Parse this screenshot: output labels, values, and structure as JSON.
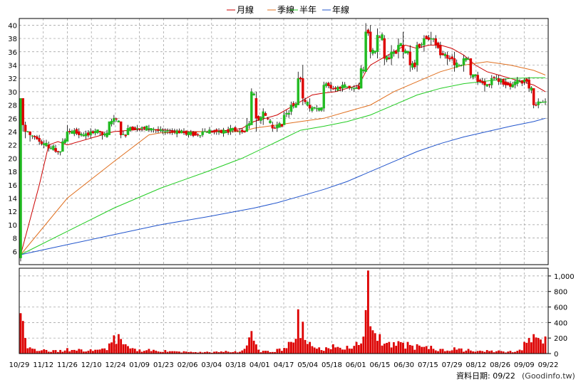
{
  "legend": [
    {
      "label": "月線",
      "color": "#cc0000"
    },
    {
      "label": "季線",
      "color": "#e07020"
    },
    {
      "label": "半年",
      "color": "#22cc22"
    },
    {
      "label": "年線",
      "color": "#2255cc"
    }
  ],
  "footer": {
    "date_label": "資料日期: 09/22",
    "source": "(Goodinfo.tw)"
  },
  "chart_data": [
    {
      "type": "candlestick",
      "title": "",
      "x_tick_labels": [
        "10/29",
        "11/12",
        "11/26",
        "12/10",
        "12/24",
        "01/09",
        "01/23",
        "02/06",
        "03/04",
        "03/18",
        "04/01",
        "04/17",
        "05/04",
        "05/18",
        "06/01",
        "06/15",
        "06/30",
        "07/15",
        "07/29",
        "08/12",
        "08/26",
        "09/09",
        "09/22"
      ],
      "y_ticks": [
        6,
        8,
        10,
        12,
        14,
        16,
        18,
        20,
        22,
        24,
        26,
        28,
        30,
        32,
        34,
        36,
        38,
        40
      ],
      "ylim": [
        4,
        41
      ],
      "grid": true,
      "legend_position": "top-center",
      "up_color": "#22bb22",
      "down_color": "#dd0000",
      "ohlc_keypoints": [
        [
          0,
          5,
          29,
          4.5,
          29
        ],
        [
          1,
          29,
          29,
          24,
          25
        ],
        [
          2,
          25,
          25.5,
          23,
          24
        ],
        [
          4,
          24,
          24,
          22.5,
          23.5
        ],
        [
          8,
          23,
          23.5,
          22,
          22.5
        ],
        [
          12,
          22,
          22.5,
          21,
          21.5
        ],
        [
          15,
          21.5,
          22,
          20.8,
          21
        ],
        [
          18,
          21,
          23,
          21,
          22.5
        ],
        [
          20,
          22.5,
          25,
          22.5,
          24
        ],
        [
          25,
          24,
          24.5,
          23,
          23.5
        ],
        [
          30,
          23.5,
          24.5,
          23,
          24
        ],
        [
          35,
          24,
          24,
          22.8,
          23.5
        ],
        [
          38,
          23.5,
          25.5,
          23.5,
          25.5
        ],
        [
          40,
          25.5,
          26.5,
          25,
          26
        ],
        [
          43,
          25.5,
          25.5,
          23,
          23.5
        ],
        [
          46,
          23.5,
          25,
          23.5,
          24.5
        ],
        [
          50,
          24.5,
          25,
          24,
          24.5
        ],
        [
          55,
          24.5,
          25,
          24,
          24.5
        ],
        [
          62,
          24,
          24.5,
          23.5,
          24
        ],
        [
          70,
          24,
          24.5,
          23.5,
          23.8
        ],
        [
          78,
          23.5,
          24.5,
          23.2,
          24
        ],
        [
          85,
          24,
          24.5,
          23.5,
          24
        ],
        [
          90,
          24,
          25,
          23.5,
          24.5
        ],
        [
          94,
          24,
          24.5,
          23.5,
          24
        ],
        [
          97,
          24,
          26,
          24,
          25
        ],
        [
          99,
          25,
          30.5,
          25,
          30
        ],
        [
          101,
          29,
          30,
          24,
          26
        ],
        [
          104,
          26,
          27.5,
          25,
          27
        ],
        [
          108,
          25,
          25.5,
          24,
          24.5
        ],
        [
          110,
          24.5,
          25.5,
          24,
          25
        ],
        [
          113,
          25,
          27,
          25,
          26.5
        ],
        [
          116,
          27,
          28.5,
          26.5,
          28
        ],
        [
          119,
          28,
          33,
          28,
          32
        ],
        [
          121,
          32,
          34,
          28,
          29
        ],
        [
          124,
          28,
          29,
          27,
          27.5
        ],
        [
          127,
          27.5,
          28,
          27,
          27.5
        ],
        [
          130,
          27.5,
          31.5,
          27,
          31
        ],
        [
          133,
          31,
          31.5,
          30,
          30.5
        ],
        [
          138,
          30.5,
          31.5,
          30,
          31
        ],
        [
          143,
          30.5,
          31,
          30,
          30.5
        ],
        [
          146,
          30.5,
          34,
          30.5,
          33.5
        ],
        [
          148,
          33,
          40.3,
          33,
          39
        ],
        [
          150,
          39,
          40,
          35,
          36
        ],
        [
          153,
          36,
          39.5,
          35,
          38.5
        ],
        [
          156,
          38,
          38.5,
          34,
          35
        ],
        [
          159,
          35,
          37,
          34,
          36
        ],
        [
          162,
          36,
          38,
          35,
          37
        ],
        [
          164,
          37,
          39,
          35,
          36
        ],
        [
          167,
          36,
          37,
          33,
          34
        ],
        [
          170,
          34,
          37.5,
          33,
          37
        ],
        [
          173,
          37,
          38.5,
          36,
          38
        ],
        [
          176,
          38,
          39,
          37,
          38
        ],
        [
          178,
          38,
          38.5,
          36.5,
          37
        ],
        [
          180,
          37,
          37.5,
          35,
          35.5
        ],
        [
          183,
          35.5,
          36,
          34,
          35
        ],
        [
          186,
          35,
          36,
          33,
          34
        ],
        [
          190,
          34,
          35.5,
          33,
          35
        ],
        [
          193,
          35,
          35,
          32,
          32.5
        ],
        [
          196,
          32.5,
          33,
          31,
          31.5
        ],
        [
          199,
          31.5,
          32,
          30,
          31
        ],
        [
          202,
          31,
          32.5,
          30.5,
          32
        ],
        [
          205,
          32,
          32.5,
          31,
          31.5
        ],
        [
          208,
          31.5,
          32,
          30.5,
          31
        ],
        [
          212,
          31,
          31.8,
          30.5,
          31.5
        ],
        [
          216,
          31.5,
          32,
          31,
          31.8
        ],
        [
          218,
          31.8,
          32.2,
          30,
          30.5
        ],
        [
          220,
          30.5,
          30.5,
          27.5,
          28
        ],
        [
          222,
          28,
          29,
          27.5,
          28.5
        ],
        [
          225,
          28.5,
          29,
          28,
          28.5
        ]
      ],
      "ma_series": [
        {
          "name": "月線",
          "color": "#cc0000",
          "points": [
            [
              0,
              5.5
            ],
            [
              8,
              16
            ],
            [
              12,
              22
            ],
            [
              16,
              22.5
            ],
            [
              20,
              22
            ],
            [
              30,
              23
            ],
            [
              40,
              24
            ],
            [
              50,
              24.3
            ],
            [
              60,
              24.3
            ],
            [
              70,
              24
            ],
            [
              80,
              24
            ],
            [
              90,
              24.2
            ],
            [
              95,
              24.5
            ],
            [
              100,
              25.5
            ],
            [
              105,
              26
            ],
            [
              110,
              26.5
            ],
            [
              115,
              27.5
            ],
            [
              120,
              28.5
            ],
            [
              125,
              29.5
            ],
            [
              130,
              29.8
            ],
            [
              135,
              30
            ],
            [
              140,
              30.5
            ],
            [
              145,
              31
            ],
            [
              148,
              33
            ],
            [
              150,
              34
            ],
            [
              155,
              35
            ],
            [
              160,
              36
            ],
            [
              165,
              37
            ],
            [
              170,
              36.5
            ],
            [
              175,
              37
            ],
            [
              180,
              37
            ],
            [
              185,
              36.5
            ],
            [
              190,
              35.5
            ],
            [
              195,
              34
            ],
            [
              200,
              33
            ],
            [
              205,
              32.5
            ],
            [
              210,
              32
            ],
            [
              215,
              31.5
            ],
            [
              220,
              31
            ],
            [
              225,
              30
            ]
          ]
        },
        {
          "name": "季線",
          "color": "#e07020",
          "points": [
            [
              0,
              5.5
            ],
            [
              20,
              14
            ],
            [
              40,
              19.5
            ],
            [
              55,
              23.5
            ],
            [
              60,
              23.8
            ],
            [
              80,
              24
            ],
            [
              95,
              24
            ],
            [
              100,
              24.5
            ],
            [
              110,
              25
            ],
            [
              120,
              25.5
            ],
            [
              130,
              26
            ],
            [
              140,
              27
            ],
            [
              150,
              28
            ],
            [
              160,
              30
            ],
            [
              170,
              31.5
            ],
            [
              180,
              33
            ],
            [
              190,
              34
            ],
            [
              200,
              34.5
            ],
            [
              210,
              34
            ],
            [
              220,
              33.2
            ],
            [
              225,
              32.5
            ]
          ]
        },
        {
          "name": "半年",
          "color": "#22cc22",
          "points": [
            [
              0,
              5.5
            ],
            [
              20,
              9
            ],
            [
              40,
              12.5
            ],
            [
              60,
              15.5
            ],
            [
              80,
              18
            ],
            [
              95,
              20
            ],
            [
              110,
              22.5
            ],
            [
              120,
              24.2
            ],
            [
              130,
              24.8
            ],
            [
              140,
              25.5
            ],
            [
              150,
              26.5
            ],
            [
              160,
              28
            ],
            [
              170,
              29.5
            ],
            [
              180,
              30.5
            ],
            [
              190,
              31.2
            ],
            [
              200,
              31.6
            ],
            [
              210,
              32
            ],
            [
              220,
              32.1
            ],
            [
              225,
              32.1
            ]
          ]
        },
        {
          "name": "年線",
          "color": "#2255cc",
          "points": [
            [
              0,
              5.5
            ],
            [
              20,
              7
            ],
            [
              40,
              8.5
            ],
            [
              60,
              10
            ],
            [
              80,
              11.2
            ],
            [
              100,
              12.5
            ],
            [
              110,
              13.3
            ],
            [
              120,
              14.3
            ],
            [
              130,
              15.3
            ],
            [
              140,
              16.5
            ],
            [
              150,
              18
            ],
            [
              160,
              19.5
            ],
            [
              170,
              21
            ],
            [
              180,
              22.2
            ],
            [
              190,
              23.2
            ],
            [
              200,
              24
            ],
            [
              210,
              24.8
            ],
            [
              220,
              25.5
            ],
            [
              225,
              26
            ]
          ]
        }
      ]
    },
    {
      "type": "bar",
      "title": "",
      "bar_color": "#dd0000",
      "y_ticks": [
        0,
        200,
        400,
        600,
        800,
        1000
      ],
      "y_tick_labels": [
        "0",
        "200",
        "400",
        "600",
        "800",
        "1,000"
      ],
      "ylim": [
        0,
        1100
      ],
      "grid": true,
      "volume_keypoints": [
        [
          0,
          520
        ],
        [
          1,
          420
        ],
        [
          2,
          200
        ],
        [
          4,
          80
        ],
        [
          6,
          60
        ],
        [
          10,
          55
        ],
        [
          15,
          45
        ],
        [
          20,
          70
        ],
        [
          25,
          60
        ],
        [
          30,
          55
        ],
        [
          35,
          65
        ],
        [
          38,
          130
        ],
        [
          40,
          235
        ],
        [
          42,
          250
        ],
        [
          45,
          120
        ],
        [
          48,
          70
        ],
        [
          55,
          60
        ],
        [
          62,
          45
        ],
        [
          70,
          30
        ],
        [
          80,
          25
        ],
        [
          88,
          35
        ],
        [
          92,
          30
        ],
        [
          95,
          40
        ],
        [
          99,
          290
        ],
        [
          102,
          50
        ],
        [
          106,
          35
        ],
        [
          110,
          60
        ],
        [
          115,
          150
        ],
        [
          118,
          190
        ],
        [
          119,
          570
        ],
        [
          121,
          410
        ],
        [
          124,
          150
        ],
        [
          128,
          80
        ],
        [
          134,
          120
        ],
        [
          140,
          100
        ],
        [
          144,
          150
        ],
        [
          148,
          560
        ],
        [
          149,
          1070
        ],
        [
          151,
          300
        ],
        [
          154,
          250
        ],
        [
          158,
          150
        ],
        [
          162,
          160
        ],
        [
          166,
          150
        ],
        [
          170,
          120
        ],
        [
          176,
          100
        ],
        [
          181,
          60
        ],
        [
          186,
          80
        ],
        [
          192,
          60
        ],
        [
          200,
          45
        ],
        [
          205,
          40
        ],
        [
          210,
          35
        ],
        [
          214,
          50
        ],
        [
          216,
          150
        ],
        [
          218,
          200
        ],
        [
          220,
          250
        ],
        [
          222,
          200
        ],
        [
          225,
          220
        ]
      ]
    }
  ]
}
